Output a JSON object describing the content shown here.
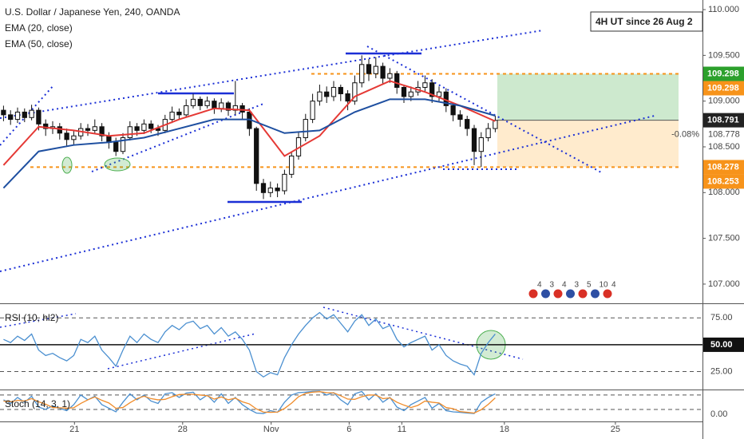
{
  "chart_data": [
    {
      "type": "candlestick",
      "title": "U.S. Dollar / Japanese Yen, 240, OANDA",
      "annotation": "4H UT since 26 Aug 2",
      "change": "-0.08%",
      "x": [
        0,
        1,
        2,
        3,
        4,
        5,
        6,
        7,
        8,
        9,
        10,
        11,
        12,
        13,
        14,
        15,
        16,
        17,
        18,
        19,
        20,
        21,
        22,
        23,
        24,
        25,
        26,
        27,
        28,
        29,
        30,
        31,
        32,
        33,
        34,
        35,
        36,
        37,
        38,
        39,
        40,
        41,
        42,
        43,
        44,
        45,
        46,
        47,
        48,
        49,
        50,
        51,
        52,
        53,
        54,
        55,
        56,
        57,
        58,
        59,
        60,
        61,
        62,
        63,
        64,
        65,
        66,
        67,
        68,
        69,
        70
      ],
      "open": [
        108.9,
        108.85,
        108.8,
        108.88,
        108.82,
        108.9,
        108.75,
        108.7,
        108.72,
        108.65,
        108.58,
        108.62,
        108.7,
        108.68,
        108.72,
        108.62,
        108.55,
        108.45,
        108.6,
        108.72,
        108.68,
        108.75,
        108.7,
        108.68,
        108.8,
        108.88,
        108.85,
        108.95,
        109.02,
        108.95,
        109.0,
        108.92,
        108.98,
        108.9,
        108.95,
        108.88,
        108.7,
        108.1,
        108.0,
        108.05,
        108.02,
        108.2,
        108.4,
        108.6,
        108.8,
        109.0,
        109.1,
        109.05,
        109.15,
        109.08,
        109.0,
        109.2,
        109.4,
        109.3,
        109.38,
        109.25,
        109.3,
        109.15,
        109.05,
        109.1,
        109.15,
        109.2,
        109.05,
        109.1,
        108.95,
        108.85,
        108.8,
        108.7,
        108.45,
        108.6,
        108.7
      ],
      "high": [
        108.95,
        108.9,
        108.93,
        108.92,
        108.96,
        108.93,
        108.8,
        108.78,
        108.76,
        108.7,
        108.68,
        108.76,
        108.75,
        108.8,
        108.76,
        108.66,
        108.6,
        108.65,
        108.78,
        108.76,
        108.8,
        108.79,
        108.74,
        108.85,
        108.94,
        108.92,
        109.02,
        109.08,
        109.05,
        109.05,
        109.03,
        109.03,
        109.0,
        109.22,
        108.98,
        108.92,
        108.72,
        108.15,
        108.12,
        108.1,
        108.25,
        108.45,
        108.66,
        108.86,
        109.08,
        109.18,
        109.16,
        109.22,
        109.18,
        109.12,
        109.28,
        109.5,
        109.46,
        109.48,
        109.42,
        109.36,
        109.33,
        109.18,
        109.16,
        109.22,
        109.28,
        109.24,
        109.16,
        109.14,
        108.98,
        108.9,
        108.84,
        108.74,
        108.66,
        108.76,
        108.84
      ],
      "low": [
        108.78,
        108.74,
        108.76,
        108.77,
        108.79,
        108.68,
        108.62,
        108.64,
        108.58,
        108.5,
        108.52,
        108.58,
        108.62,
        108.64,
        108.56,
        108.48,
        108.4,
        108.42,
        108.57,
        108.62,
        108.64,
        108.65,
        108.62,
        108.65,
        108.76,
        108.8,
        108.82,
        108.92,
        108.9,
        108.92,
        108.86,
        108.88,
        108.84,
        108.85,
        108.8,
        108.62,
        108.02,
        107.93,
        107.95,
        107.95,
        107.98,
        108.16,
        108.36,
        108.56,
        108.76,
        108.95,
        108.98,
        109.0,
        109.0,
        108.9,
        108.96,
        109.15,
        109.22,
        109.25,
        109.18,
        109.2,
        109.08,
        108.98,
        109.0,
        109.06,
        109.1,
        108.98,
        109.0,
        108.88,
        108.78,
        108.72,
        108.62,
        108.3,
        108.28,
        108.56,
        108.66
      ],
      "close": [
        108.85,
        108.8,
        108.88,
        108.82,
        108.9,
        108.75,
        108.7,
        108.72,
        108.65,
        108.58,
        108.62,
        108.7,
        108.68,
        108.72,
        108.62,
        108.55,
        108.45,
        108.6,
        108.72,
        108.68,
        108.75,
        108.7,
        108.68,
        108.8,
        108.88,
        108.85,
        108.95,
        109.02,
        108.95,
        109.0,
        108.92,
        108.98,
        108.9,
        108.95,
        108.88,
        108.7,
        108.1,
        108.0,
        108.05,
        108.02,
        108.2,
        108.4,
        108.6,
        108.8,
        109.0,
        109.1,
        109.05,
        109.15,
        109.08,
        109.0,
        109.2,
        109.4,
        109.3,
        109.38,
        109.25,
        109.3,
        109.15,
        109.05,
        109.1,
        109.15,
        109.2,
        109.05,
        109.1,
        108.95,
        108.85,
        108.8,
        108.7,
        108.45,
        108.6,
        108.7,
        108.79
      ],
      "series": [
        {
          "name": "EMA (20, close)",
          "color": "#e53935",
          "x": [
            0,
            5,
            10,
            15,
            20,
            25,
            30,
            35,
            40,
            45,
            50,
            55,
            60,
            65,
            70
          ],
          "values": [
            108.3,
            108.72,
            108.68,
            108.62,
            108.65,
            108.8,
            108.92,
            108.9,
            108.4,
            108.62,
            109.05,
            109.22,
            109.1,
            108.95,
            108.78
          ]
        },
        {
          "name": "EMA (50, close)",
          "color": "#1e4fa0",
          "x": [
            0,
            5,
            10,
            15,
            20,
            25,
            30,
            35,
            40,
            45,
            50,
            55,
            60,
            65,
            70
          ],
          "values": [
            108.05,
            108.45,
            108.52,
            108.55,
            108.6,
            108.7,
            108.8,
            108.8,
            108.65,
            108.68,
            108.88,
            109.02,
            109.02,
            108.95,
            108.84
          ]
        }
      ],
      "xlim": [
        -0.5,
        99.5
      ],
      "xticks": [
        {
          "value": 10.1,
          "label": "21"
        },
        {
          "value": 25.5,
          "label": "28"
        },
        {
          "value": 38.1,
          "label": "Nov"
        },
        {
          "value": 49.2,
          "label": "6"
        },
        {
          "value": 56.7,
          "label": "11"
        },
        {
          "value": 71.3,
          "label": "18"
        },
        {
          "value": 87.1,
          "label": "25"
        }
      ],
      "ylim": [
        106.79,
        110.105
      ],
      "yticks": [
        {
          "value": 110,
          "label": "110.000"
        },
        {
          "value": 109.5,
          "label": "109.500"
        },
        {
          "value": 109,
          "label": "109.000"
        },
        {
          "value": 108.5,
          "label": "108.500"
        },
        {
          "value": 108,
          "label": "108.000"
        },
        {
          "value": 107.5,
          "label": "107.500"
        },
        {
          "value": 107,
          "label": "107.000"
        }
      ],
      "price_labels": [
        {
          "value": 109.298,
          "label": "109.298",
          "color": "#2ca02c"
        },
        {
          "value": 109.298,
          "label": "109.298",
          "color": "#f7931a"
        },
        {
          "value": 108.791,
          "label": "108.791",
          "color": "#222222"
        },
        {
          "value": 108.778,
          "label": "108.778"
        },
        {
          "value": 108.278,
          "label": "108.278",
          "color": "#f7931a"
        },
        {
          "value": 108.253,
          "label": "108.253",
          "color": "#f7931a"
        }
      ],
      "events": [
        "4",
        "3",
        "4",
        "3",
        "5",
        "10",
        "4"
      ]
    },
    {
      "type": "line",
      "title": "RSI (10, hl2)",
      "color": "#4a8fd0",
      "values": [
        55,
        52,
        58,
        54,
        60,
        45,
        40,
        42,
        38,
        35,
        40,
        55,
        52,
        58,
        45,
        38,
        30,
        45,
        58,
        52,
        60,
        55,
        52,
        62,
        68,
        64,
        70,
        72,
        65,
        68,
        60,
        66,
        58,
        62,
        55,
        45,
        25,
        20,
        24,
        22,
        38,
        50,
        60,
        68,
        75,
        80,
        74,
        78,
        70,
        62,
        72,
        78,
        68,
        74,
        65,
        68,
        55,
        48,
        52,
        55,
        58,
        45,
        50,
        40,
        35,
        32,
        30,
        22,
        42,
        52,
        60
      ],
      "ylim": [
        8.3,
        88.6
      ],
      "yticks": [
        {
          "value": 75,
          "label": "75.00"
        },
        {
          "value": 50,
          "label": "50.00"
        },
        {
          "value": 25,
          "label": "25.00"
        }
      ]
    },
    {
      "type": "line",
      "title": "Stoch (14, 3, 1)",
      "series": [
        {
          "color": "#4a8fd0",
          "values": [
            60,
            45,
            70,
            50,
            75,
            30,
            20,
            35,
            25,
            15,
            40,
            80,
            60,
            75,
            40,
            25,
            10,
            50,
            85,
            60,
            80,
            55,
            45,
            85,
            90,
            70,
            88,
            92,
            60,
            80,
            50,
            85,
            45,
            70,
            40,
            20,
            5,
            3,
            15,
            8,
            50,
            80,
            90,
            92,
            95,
            96,
            80,
            90,
            60,
            40,
            85,
            95,
            60,
            85,
            50,
            70,
            30,
            15,
            40,
            55,
            70,
            25,
            45,
            15,
            10,
            8,
            5,
            3,
            50,
            70,
            85
          ]
        },
        {
          "color": "#f08c2a",
          "values": [
            55,
            52,
            58,
            55,
            65,
            52,
            42,
            28,
            27,
            25,
            27,
            45,
            60,
            72,
            58,
            47,
            25,
            28,
            48,
            65,
            75,
            65,
            60,
            62,
            73,
            82,
            83,
            83,
            80,
            77,
            63,
            72,
            60,
            67,
            52,
            43,
            22,
            9,
            8,
            9,
            24,
            46,
            73,
            87,
            92,
            94,
            90,
            89,
            77,
            63,
            62,
            73,
            80,
            80,
            65,
            68,
            50,
            38,
            28,
            37,
            55,
            50,
            47,
            28,
            23,
            11,
            8,
            5,
            19,
            41,
            68
          ]
        }
      ],
      "ylim": [
        -30,
        103
      ],
      "yticks": [
        {
          "value": 0,
          "label": "0.00"
        }
      ],
      "levels": [
        80,
        20
      ]
    }
  ]
}
